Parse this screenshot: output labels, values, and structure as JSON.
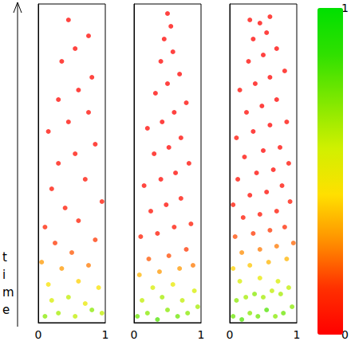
{
  "chart_data": {
    "type": "scatter",
    "ylabel": "time",
    "xlim": [
      0,
      1
    ],
    "xticks": [
      0,
      1
    ],
    "ylim": [
      0,
      1
    ],
    "tick_labels": "x",
    "colorbar": {
      "range": [
        0,
        1
      ],
      "ticks": [
        0,
        1
      ]
    },
    "series": [
      {
        "points": [
          [
            0.1,
            0.02,
            0.7
          ],
          [
            0.3,
            0.03,
            0.65
          ],
          [
            0.55,
            0.02,
            0.6
          ],
          [
            0.8,
            0.04,
            0.7
          ],
          [
            0.95,
            0.03,
            0.6
          ],
          [
            0.2,
            0.07,
            0.55
          ],
          [
            0.45,
            0.08,
            0.6
          ],
          [
            0.7,
            0.06,
            0.5
          ],
          [
            0.15,
            0.12,
            0.45
          ],
          [
            0.6,
            0.13,
            0.4
          ],
          [
            0.9,
            0.11,
            0.45
          ],
          [
            0.35,
            0.17,
            0.3
          ],
          [
            0.05,
            0.19,
            0.3
          ],
          [
            0.75,
            0.18,
            0.25
          ],
          [
            0.5,
            0.22,
            0.2
          ],
          [
            0.25,
            0.25,
            0.15
          ],
          [
            0.85,
            0.26,
            0.15
          ],
          [
            0.1,
            0.3,
            0.1
          ],
          [
            0.6,
            0.32,
            0.08
          ],
          [
            0.4,
            0.36,
            0.07
          ],
          [
            0.95,
            0.38,
            0.06
          ],
          [
            0.2,
            0.42,
            0.05
          ],
          [
            0.7,
            0.45,
            0.05
          ],
          [
            0.3,
            0.5,
            0.04
          ],
          [
            0.55,
            0.53,
            0.04
          ],
          [
            0.85,
            0.56,
            0.03
          ],
          [
            0.15,
            0.6,
            0.03
          ],
          [
            0.45,
            0.63,
            0.03
          ],
          [
            0.75,
            0.66,
            0.03
          ],
          [
            0.3,
            0.7,
            0.02
          ],
          [
            0.6,
            0.73,
            0.02
          ],
          [
            0.8,
            0.77,
            0.02
          ],
          [
            0.35,
            0.82,
            0.02
          ],
          [
            0.55,
            0.86,
            0.02
          ],
          [
            0.75,
            0.9,
            0.02
          ],
          [
            0.45,
            0.95,
            0.02
          ]
        ]
      },
      {
        "points": [
          [
            0.05,
            0.02,
            0.75
          ],
          [
            0.2,
            0.03,
            0.7
          ],
          [
            0.35,
            0.01,
            0.8
          ],
          [
            0.5,
            0.04,
            0.7
          ],
          [
            0.65,
            0.02,
            0.75
          ],
          [
            0.8,
            0.03,
            0.7
          ],
          [
            0.95,
            0.05,
            0.65
          ],
          [
            0.12,
            0.07,
            0.6
          ],
          [
            0.42,
            0.08,
            0.65
          ],
          [
            0.72,
            0.07,
            0.6
          ],
          [
            0.9,
            0.1,
            0.55
          ],
          [
            0.28,
            0.11,
            0.55
          ],
          [
            0.58,
            0.12,
            0.5
          ],
          [
            0.08,
            0.15,
            0.35
          ],
          [
            0.38,
            0.16,
            0.3
          ],
          [
            0.68,
            0.17,
            0.3
          ],
          [
            0.88,
            0.18,
            0.25
          ],
          [
            0.22,
            0.2,
            0.2
          ],
          [
            0.52,
            0.21,
            0.18
          ],
          [
            0.78,
            0.23,
            0.15
          ],
          [
            0.1,
            0.27,
            0.08
          ],
          [
            0.35,
            0.28,
            0.06
          ],
          [
            0.6,
            0.3,
            0.06
          ],
          [
            0.85,
            0.31,
            0.07
          ],
          [
            0.25,
            0.35,
            0.04
          ],
          [
            0.48,
            0.37,
            0.03
          ],
          [
            0.7,
            0.39,
            0.04
          ],
          [
            0.15,
            0.43,
            0.03
          ],
          [
            0.4,
            0.45,
            0.02
          ],
          [
            0.62,
            0.47,
            0.02
          ],
          [
            0.82,
            0.5,
            0.03
          ],
          [
            0.3,
            0.53,
            0.02
          ],
          [
            0.52,
            0.55,
            0.01
          ],
          [
            0.7,
            0.58,
            0.02
          ],
          [
            0.2,
            0.61,
            0.02
          ],
          [
            0.42,
            0.63,
            0.01
          ],
          [
            0.6,
            0.66,
            0.01
          ],
          [
            0.78,
            0.69,
            0.02
          ],
          [
            0.32,
            0.72,
            0.01
          ],
          [
            0.5,
            0.75,
            0.01
          ],
          [
            0.68,
            0.78,
            0.01
          ],
          [
            0.4,
            0.82,
            0.01
          ],
          [
            0.58,
            0.85,
            0.01
          ],
          [
            0.45,
            0.89,
            0.01
          ],
          [
            0.55,
            0.93,
            0.01
          ],
          [
            0.5,
            0.97,
            0.01
          ]
        ]
      },
      {
        "points": [
          [
            0.05,
            0.02,
            0.75
          ],
          [
            0.18,
            0.01,
            0.8
          ],
          [
            0.3,
            0.03,
            0.7
          ],
          [
            0.42,
            0.02,
            0.75
          ],
          [
            0.55,
            0.04,
            0.8
          ],
          [
            0.68,
            0.02,
            0.7
          ],
          [
            0.8,
            0.03,
            0.75
          ],
          [
            0.93,
            0.05,
            0.7
          ],
          [
            0.1,
            0.07,
            0.7
          ],
          [
            0.24,
            0.08,
            0.65
          ],
          [
            0.37,
            0.09,
            0.7
          ],
          [
            0.5,
            0.08,
            0.65
          ],
          [
            0.63,
            0.1,
            0.6
          ],
          [
            0.76,
            0.09,
            0.65
          ],
          [
            0.88,
            0.11,
            0.6
          ],
          [
            0.15,
            0.13,
            0.55
          ],
          [
            0.45,
            0.14,
            0.5
          ],
          [
            0.72,
            0.13,
            0.55
          ],
          [
            0.05,
            0.17,
            0.4
          ],
          [
            0.3,
            0.18,
            0.38
          ],
          [
            0.58,
            0.19,
            0.35
          ],
          [
            0.85,
            0.2,
            0.35
          ],
          [
            0.18,
            0.22,
            0.28
          ],
          [
            0.45,
            0.23,
            0.25
          ],
          [
            0.7,
            0.24,
            0.25
          ],
          [
            0.95,
            0.25,
            0.22
          ],
          [
            0.08,
            0.27,
            0.18
          ],
          [
            0.35,
            0.28,
            0.15
          ],
          [
            0.6,
            0.29,
            0.15
          ],
          [
            0.82,
            0.3,
            0.12
          ],
          [
            0.2,
            0.33,
            0.06
          ],
          [
            0.45,
            0.34,
            0.05
          ],
          [
            0.7,
            0.35,
            0.06
          ],
          [
            0.05,
            0.37,
            0.06
          ],
          [
            0.9,
            0.38,
            0.06
          ],
          [
            0.3,
            0.4,
            0.03
          ],
          [
            0.55,
            0.41,
            0.03
          ],
          [
            0.78,
            0.43,
            0.04
          ],
          [
            0.12,
            0.45,
            0.04
          ],
          [
            0.4,
            0.47,
            0.02
          ],
          [
            0.65,
            0.48,
            0.02
          ],
          [
            0.88,
            0.5,
            0.04
          ],
          [
            0.22,
            0.52,
            0.03
          ],
          [
            0.5,
            0.54,
            0.01
          ],
          [
            0.75,
            0.55,
            0.02
          ],
          [
            0.1,
            0.58,
            0.04
          ],
          [
            0.35,
            0.6,
            0.01
          ],
          [
            0.6,
            0.62,
            0.01
          ],
          [
            0.85,
            0.63,
            0.03
          ],
          [
            0.25,
            0.66,
            0.02
          ],
          [
            0.48,
            0.68,
            0.01
          ],
          [
            0.7,
            0.7,
            0.01
          ],
          [
            0.15,
            0.73,
            0.03
          ],
          [
            0.38,
            0.75,
            0.01
          ],
          [
            0.6,
            0.77,
            0.01
          ],
          [
            0.82,
            0.79,
            0.02
          ],
          [
            0.28,
            0.82,
            0.02
          ],
          [
            0.5,
            0.84,
            0.01
          ],
          [
            0.7,
            0.86,
            0.01
          ],
          [
            0.35,
            0.89,
            0.01
          ],
          [
            0.55,
            0.91,
            0.01
          ],
          [
            0.45,
            0.94,
            0.01
          ],
          [
            0.6,
            0.96,
            0.02
          ],
          [
            0.3,
            0.95,
            0.02
          ]
        ]
      }
    ]
  }
}
